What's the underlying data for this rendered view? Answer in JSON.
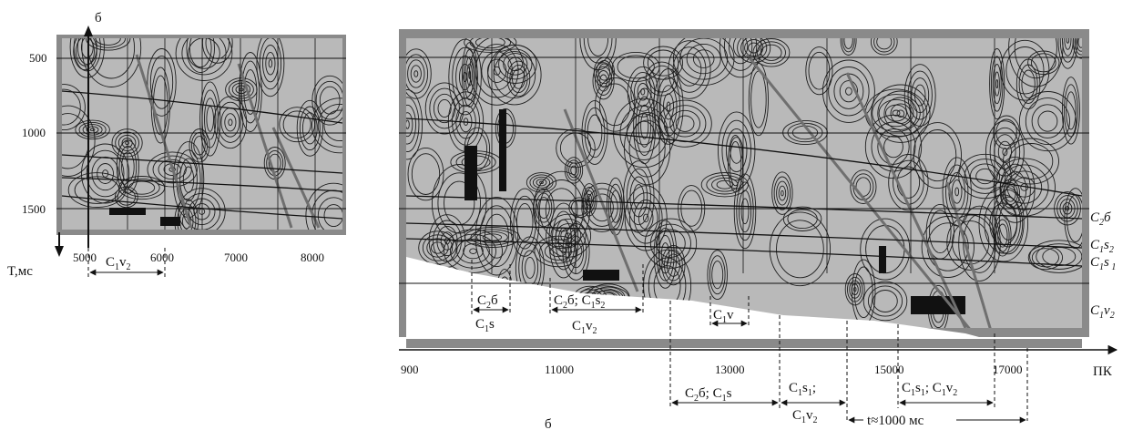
{
  "left_panel": {
    "panel_letter": "б",
    "y_axis_title": "T,мс",
    "y_ticks": [
      "500",
      "1000",
      "1500"
    ],
    "x_ticks": [
      "5000",
      "6000",
      "7000",
      "8000"
    ],
    "annotation": {
      "main": "C",
      "s1": "1",
      "mid": "v",
      "s2": "2"
    }
  },
  "right_panel": {
    "x_axis_unit": "ПК",
    "x_ticks": [
      "900",
      "11000",
      "13000",
      "15000",
      "17000"
    ],
    "horizon_labels": [
      {
        "main": "C",
        "s1": "2",
        "tail": "б",
        "s2": ""
      },
      {
        "main": "C",
        "s1": "1",
        "tail": "s",
        "s2": "2"
      },
      {
        "main": "C",
        "s1": "1",
        "tail": "s",
        "s2": " 1"
      },
      {
        "main": "C",
        "s1": "1",
        "tail": "v",
        "s2": "2"
      }
    ],
    "inner_annotations": {
      "a1_top": {
        "main": "C",
        "s1": "2",
        "tail": "б"
      },
      "a1_bottom": {
        "main": "C",
        "s1": "1",
        "tail": "s"
      },
      "a2_top": {
        "p1": "C",
        "p1s": "2",
        "p2": "б; C",
        "p2s": "1",
        "p3": "s",
        "p3s": "2"
      },
      "a2_bottom": {
        "main": "C",
        "s1": "1",
        "mid": "v",
        "s2": "2"
      },
      "a3": {
        "main": "C",
        "s1": "1",
        "tail": "v"
      }
    },
    "below_annotations": {
      "b1": {
        "p1": "C",
        "p1s": "2",
        "p2": "б; C",
        "p2s": "1",
        "p3": "s"
      },
      "b2_top": {
        "p1": "C",
        "p1s": "1",
        "p2": "s",
        "p2s": "1",
        "p3": ";"
      },
      "b2_bottom": {
        "main": "C",
        "s1": "1",
        "mid": "v",
        "s2": "2"
      },
      "b3": {
        "p1": "C",
        "p1s": "1",
        "p2": "s",
        "p2s": "1",
        "p3": "; C",
        "p3s": "1",
        "p4": "v",
        "p4s": "2"
      },
      "timing": "t≈1000 мс"
    },
    "caption_letter": "б"
  },
  "colors": {
    "panel_fill": "#b9b9b9",
    "panel_frame": "#8a8a8a",
    "contour": "#1e1e1e",
    "grid": "#111111",
    "fault": "#6f6f6f"
  }
}
